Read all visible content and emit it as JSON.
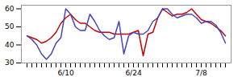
{
  "chart_data": {
    "type": "line",
    "categories": [
      null,
      null,
      null,
      null,
      null,
      null,
      null,
      null,
      "6/10",
      null,
      null,
      null,
      null,
      null,
      null,
      null,
      null,
      null,
      null,
      null,
      null,
      null,
      "6/24",
      null,
      null,
      null,
      null,
      null,
      null,
      null,
      null,
      null,
      null,
      null,
      null,
      null,
      "7/8",
      null,
      null,
      null,
      null,
      null
    ],
    "series": [
      {
        "color": "#cc0000",
        "values": [
          45,
          44,
          43,
          41,
          42,
          44,
          47,
          52,
          55,
          57,
          54,
          52,
          52,
          50,
          48,
          47,
          47,
          47,
          46,
          46,
          46,
          46,
          47,
          48,
          34,
          46,
          47,
          55,
          60,
          58,
          56,
          57,
          57,
          58,
          60,
          57,
          54,
          53,
          52,
          50,
          48,
          45
        ]
      },
      {
        "color": "#4444bb",
        "values": [
          45,
          43,
          40,
          35,
          32,
          35,
          41,
          44,
          60,
          57,
          50,
          48,
          48,
          57,
          53,
          48,
          45,
          43,
          44,
          53,
          35,
          45,
          47,
          46,
          46,
          48,
          53,
          55,
          60,
          60,
          57,
          55,
          56,
          57,
          57,
          55,
          52,
          53,
          53,
          51,
          47,
          41
        ]
      }
    ],
    "ylim": [
      30,
      62
    ],
    "yticks": [
      30,
      40,
      50,
      60
    ],
    "grid": false
  }
}
